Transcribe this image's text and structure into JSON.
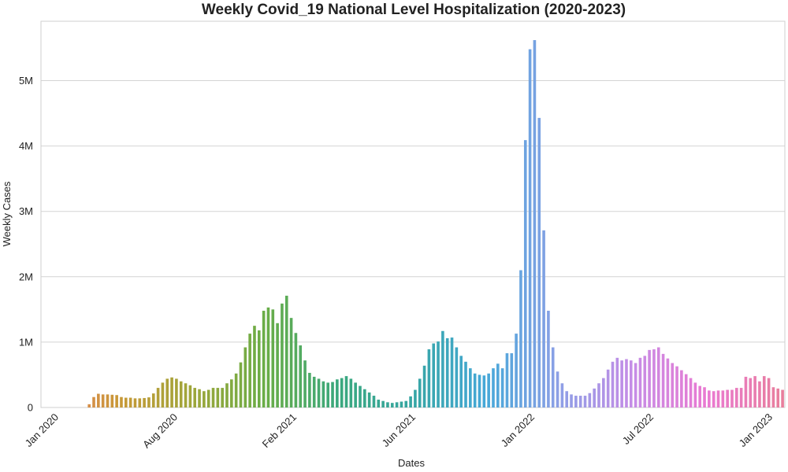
{
  "chart_data": {
    "type": "bar",
    "title": "Weekly Covid_19 National Level Hospitalization (2020-2023)",
    "xlabel": "Dates",
    "ylabel": "Weekly Cases",
    "ylim": [
      0,
      5920000
    ],
    "grid": true,
    "legend": "none",
    "x_tick_labels": [
      "Jan 2020",
      "Aug 2020",
      "Feb 2021",
      "Jun 2021",
      "Jan 2022",
      "Jul 2022",
      "Jan 2023"
    ],
    "y_ticks": [
      {
        "value": 0,
        "label": "0"
      },
      {
        "value": 1000000,
        "label": "1M"
      },
      {
        "value": 2000000,
        "label": "2M"
      },
      {
        "value": 3000000,
        "label": "3M"
      },
      {
        "value": 4000000,
        "label": "4M"
      },
      {
        "value": 5000000,
        "label": "5M"
      }
    ],
    "values": [
      0,
      0,
      0,
      0,
      0,
      0,
      0,
      0,
      0,
      0,
      50000,
      160000,
      210000,
      200000,
      200000,
      195000,
      190000,
      160000,
      150000,
      150000,
      140000,
      140000,
      145000,
      155000,
      215000,
      300000,
      380000,
      440000,
      460000,
      440000,
      400000,
      370000,
      340000,
      300000,
      280000,
      250000,
      270000,
      300000,
      300000,
      300000,
      370000,
      430000,
      520000,
      690000,
      920000,
      1130000,
      1250000,
      1180000,
      1480000,
      1530000,
      1500000,
      1290000,
      1590000,
      1710000,
      1370000,
      1140000,
      950000,
      720000,
      530000,
      470000,
      440000,
      400000,
      380000,
      390000,
      430000,
      450000,
      480000,
      440000,
      380000,
      330000,
      280000,
      230000,
      180000,
      120000,
      100000,
      80000,
      70000,
      80000,
      90000,
      100000,
      170000,
      270000,
      440000,
      640000,
      890000,
      980000,
      1010000,
      1170000,
      1060000,
      1070000,
      920000,
      790000,
      700000,
      600000,
      520000,
      500000,
      490000,
      520000,
      600000,
      670000,
      600000,
      830000,
      830000,
      1130000,
      2100000,
      4090000,
      5480000,
      5620000,
      4430000,
      2710000,
      1480000,
      920000,
      550000,
      370000,
      250000,
      200000,
      180000,
      180000,
      180000,
      220000,
      290000,
      370000,
      450000,
      580000,
      700000,
      760000,
      720000,
      740000,
      720000,
      680000,
      760000,
      790000,
      880000,
      890000,
      920000,
      820000,
      750000,
      680000,
      630000,
      570000,
      510000,
      450000,
      380000,
      330000,
      310000,
      260000,
      250000,
      260000,
      260000,
      270000,
      270000,
      300000,
      300000,
      470000,
      450000,
      480000,
      400000,
      480000,
      450000,
      310000,
      290000,
      270000
    ],
    "colors": {
      "start": "#ea8065",
      "gradient_stops": [
        "#ea8065",
        "#c99838",
        "#9fa63a",
        "#6aad47",
        "#3aa87e",
        "#37a6a4",
        "#47a8d9",
        "#8f9fe6",
        "#c78ce6",
        "#ea7ad1",
        "#e87e9c"
      ]
    }
  }
}
